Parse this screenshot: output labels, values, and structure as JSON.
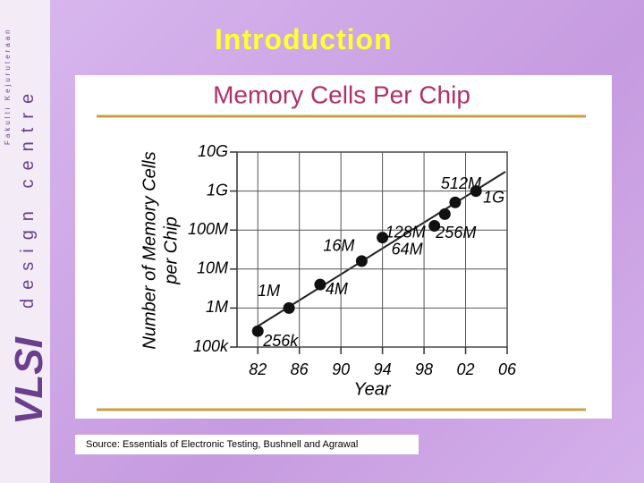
{
  "slide": {
    "title": "Introduction",
    "sidebar_logo": "VLSI",
    "sidebar_text": "design centre",
    "sidebar_faculty": "Fakulti Kejuruteraan",
    "source": "Source: Essentials of Electronic Testing, Bushnell and Agrawal"
  },
  "chart_data": {
    "type": "scatter",
    "title": "Memory Cells Per Chip",
    "x_label": "Year",
    "y_label": [
      "Number of Memory Cells",
      "per Chip"
    ],
    "x": [
      1982,
      1985,
      1988,
      1992,
      1994,
      1999,
      2000,
      2001,
      2003
    ],
    "values": [
      256000,
      1000000,
      4000000,
      16000000,
      64000000,
      128000000,
      256000000,
      512000000,
      1000000000
    ],
    "value_labels": [
      "256k",
      "1M",
      "4M",
      "16M",
      "64M",
      "128M",
      "256M",
      "512M",
      "1G"
    ],
    "color": "#111111",
    "log_y": true,
    "grid": true,
    "xlim": [
      1980,
      2006
    ],
    "xticks": [
      {
        "value": 1982,
        "label": "82"
      },
      {
        "value": 1986,
        "label": "86"
      },
      {
        "value": 1990,
        "label": "90"
      },
      {
        "value": 1994,
        "label": "94"
      },
      {
        "value": 1998,
        "label": "98"
      },
      {
        "value": 2002,
        "label": "02"
      },
      {
        "value": 2006,
        "label": "06"
      }
    ],
    "ylim": [
      100000,
      10000000000
    ],
    "yticks": [
      {
        "value": 100000,
        "label": "100k"
      },
      {
        "value": 1000000,
        "label": "1M"
      },
      {
        "value": 10000000,
        "label": "10M"
      },
      {
        "value": 100000000,
        "label": "100M"
      },
      {
        "value": 1000000000,
        "label": "1G"
      },
      {
        "value": 10000000000,
        "label": "10G"
      }
    ]
  }
}
